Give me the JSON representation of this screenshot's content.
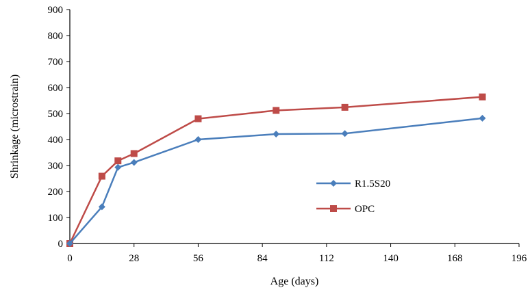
{
  "chart_data": {
    "type": "line",
    "xlabel": "Age (days)",
    "ylabel": "Shrinkage (microstrain)",
    "xlim": [
      0,
      196
    ],
    "ylim": [
      0,
      900
    ],
    "xticks": [
      0,
      28,
      56,
      84,
      112,
      140,
      168,
      196
    ],
    "yticks": [
      0,
      100,
      200,
      300,
      400,
      500,
      600,
      700,
      800,
      900
    ],
    "xtick_labels": [
      "0",
      "28",
      "56",
      "84",
      "112",
      "140",
      "168",
      "196"
    ],
    "ytick_labels": [
      "0",
      "100",
      "200",
      "300",
      "400",
      "500",
      "600",
      "700",
      "800",
      "900"
    ],
    "grid": false,
    "legend_position": "right-center",
    "series": [
      {
        "name": "R1.5S20",
        "color": "#4a7ebb",
        "marker": "diamond",
        "x": [
          0,
          14,
          21,
          28,
          56,
          90,
          120,
          180
        ],
        "y": [
          0,
          141,
          293,
          312,
          400,
          421,
          423,
          482
        ]
      },
      {
        "name": "OPC",
        "color": "#be4b48",
        "marker": "square",
        "x": [
          0,
          14,
          21,
          28,
          56,
          90,
          120,
          180
        ],
        "y": [
          0,
          259,
          318,
          346,
          480,
          512,
          524,
          564
        ]
      }
    ]
  }
}
